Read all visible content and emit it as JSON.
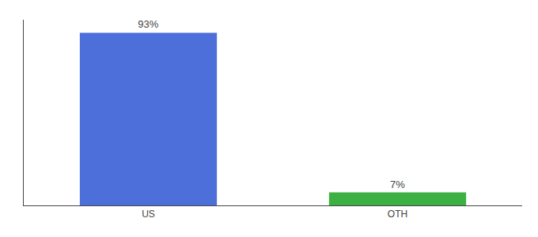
{
  "chart_data": {
    "type": "bar",
    "categories": [
      "US",
      "OTH"
    ],
    "values": [
      93,
      7
    ],
    "value_labels": [
      "93%",
      "7%"
    ],
    "data_labels": true,
    "colors": [
      "#4d6fd9",
      "#3cb043"
    ],
    "ylim": [
      0,
      100
    ],
    "yticks": [],
    "tick_labels": "x",
    "grid": false
  }
}
